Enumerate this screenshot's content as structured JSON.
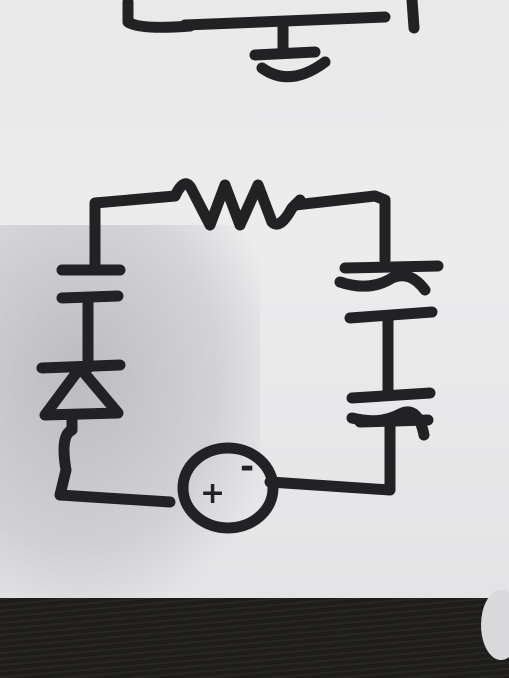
{
  "diagram": {
    "kind": "hand-drawn circuit sketch",
    "ink_color": "#222225",
    "paper_color": "#ebebec",
    "table_color": "#1e1d1b",
    "components": [
      {
        "id": "resistor",
        "symbol": "zigzag"
      },
      {
        "id": "battery-left",
        "symbol": "cell"
      },
      {
        "id": "diode",
        "symbol": "triangle-bar"
      },
      {
        "id": "voltage-source",
        "symbol": "circle",
        "labels": [
          "+",
          "-"
        ]
      },
      {
        "id": "capacitor-top-right",
        "symbol": "parallel-plates"
      },
      {
        "id": "capacitor-bottom-right",
        "symbol": "parallel-plates"
      },
      {
        "id": "ground-top",
        "symbol": "ground"
      }
    ],
    "source_labels": {
      "plus": "+",
      "minus": "-"
    }
  }
}
